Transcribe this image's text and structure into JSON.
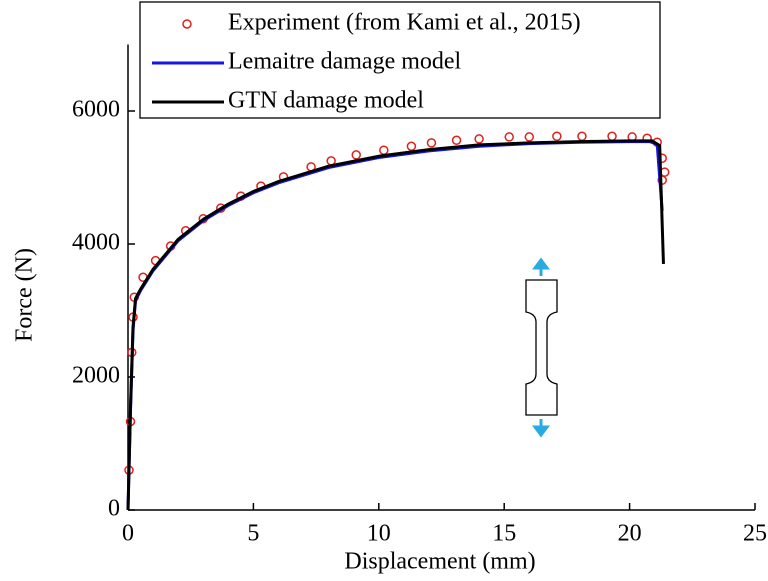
{
  "chart_data": {
    "type": "line",
    "xlabel": "Displacement (mm)",
    "ylabel": "Force (N)",
    "xlim": [
      0,
      25
    ],
    "xticks": [
      0,
      5,
      10,
      15,
      20,
      25
    ],
    "ylim": [
      0,
      7000
    ],
    "yticks": [
      0,
      2000,
      4000,
      6000
    ],
    "legend": "upper center",
    "series": [
      {
        "name": "Experiment (from Kami et al., 2015)",
        "type": "scatter",
        "color": "#e0201b",
        "x": [
          0.04,
          0.1,
          0.15,
          0.2,
          0.25,
          0.6,
          1.1,
          1.7,
          2.3,
          3.0,
          3.7,
          4.5,
          5.3,
          6.2,
          7.3,
          8.1,
          9.1,
          10.2,
          11.3,
          12.1,
          13.1,
          14.0,
          15.2,
          16.0,
          17.1,
          18.1,
          19.3,
          20.1,
          20.7,
          21.1,
          21.3,
          21.4,
          21.3
        ],
        "values": [
          600,
          1330,
          2370,
          2900,
          3200,
          3500,
          3750,
          3970,
          4200,
          4380,
          4540,
          4720,
          4870,
          5010,
          5160,
          5250,
          5340,
          5410,
          5470,
          5520,
          5560,
          5580,
          5610,
          5610,
          5620,
          5620,
          5620,
          5610,
          5590,
          5530,
          5290,
          5080,
          4960
        ]
      },
      {
        "name": "Lemaitre damage model",
        "type": "line",
        "color": "#1414e6",
        "x": [
          0,
          0.1,
          0.2,
          0.3,
          0.5,
          1,
          2,
          3,
          4,
          5,
          6,
          8,
          10,
          12,
          14,
          16,
          18,
          20,
          20.8,
          21.1,
          21.3
        ],
        "values": [
          0,
          1500,
          2700,
          3150,
          3300,
          3600,
          4050,
          4350,
          4580,
          4770,
          4920,
          5150,
          5300,
          5400,
          5470,
          5510,
          5530,
          5540,
          5540,
          5500,
          4500
        ]
      },
      {
        "name": "GTN damage model",
        "type": "line",
        "color": "#000000",
        "x": [
          0,
          0.1,
          0.2,
          0.3,
          0.5,
          1,
          2,
          3,
          4,
          5,
          6,
          8,
          10,
          12,
          14,
          16,
          18,
          20,
          20.9,
          21.2,
          21.35
        ],
        "values": [
          0,
          1550,
          2750,
          3180,
          3320,
          3620,
          4070,
          4370,
          4600,
          4790,
          4940,
          5170,
          5320,
          5420,
          5490,
          5520,
          5540,
          5550,
          5550,
          5480,
          3700
        ]
      }
    ]
  }
}
